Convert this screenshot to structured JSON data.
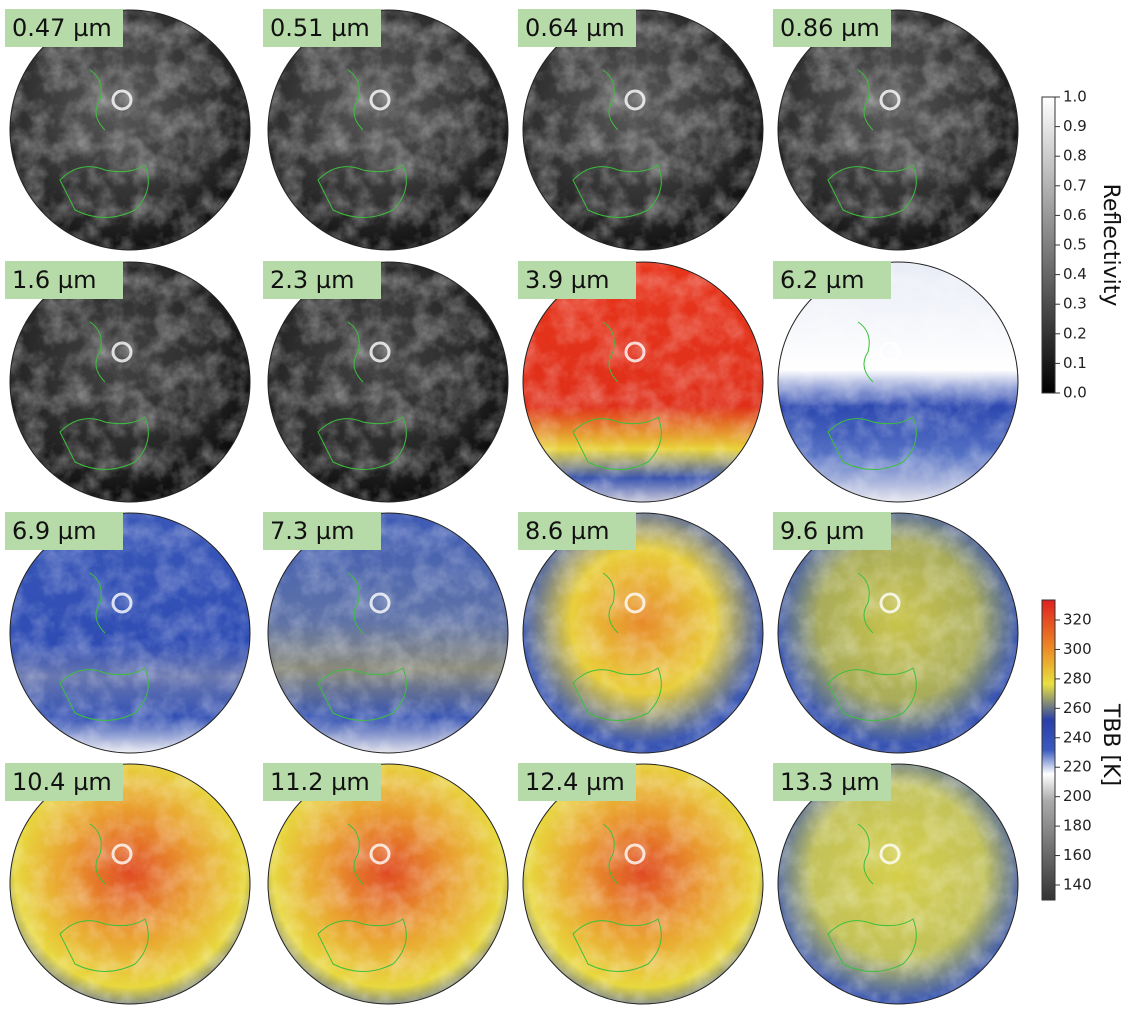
{
  "panels": [
    {
      "label": "0.47 µm"
    },
    {
      "label": "0.51 µm"
    },
    {
      "label": "0.64 µm"
    },
    {
      "label": "0.86 µm"
    },
    {
      "label": "1.6 µm"
    },
    {
      "label": "2.3 µm"
    },
    {
      "label": "3.9 µm"
    },
    {
      "label": "6.2 µm"
    },
    {
      "label": "6.9 µm"
    },
    {
      "label": "7.3 µm"
    },
    {
      "label": "8.6 µm"
    },
    {
      "label": "9.6 µm"
    },
    {
      "label": "10.4 µm"
    },
    {
      "label": "11.2 µm"
    },
    {
      "label": "12.4 µm"
    },
    {
      "label": "13.3 µm"
    }
  ],
  "colorbars": [
    {
      "title": "Reflectivity",
      "ticks": [
        {
          "value": 0,
          "label": "0.0"
        },
        0.1,
        0.2,
        0.3,
        0.4,
        0.5,
        0.6,
        0.7,
        0.8,
        0.9,
        {
          "value": 1,
          "label": "1.0"
        }
      ]
    },
    {
      "title": "TBB [K]",
      "ticks": [
        140,
        160,
        180,
        200,
        220,
        240,
        260,
        280,
        300,
        320
      ]
    }
  ]
}
